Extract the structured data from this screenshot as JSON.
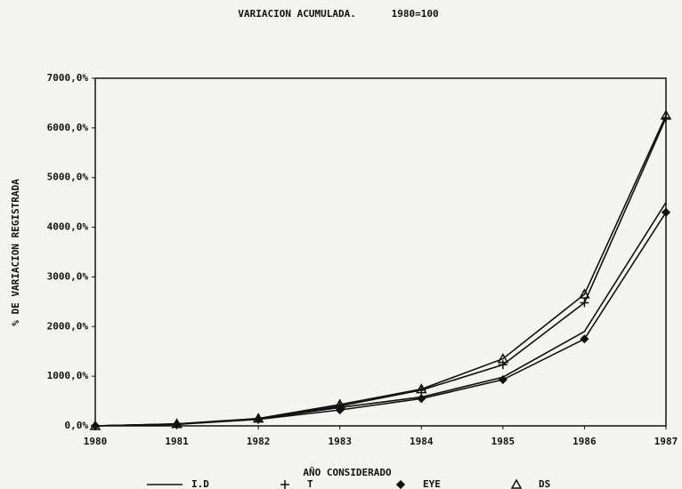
{
  "chart_data": {
    "type": "line",
    "title": "VARIACION ACUMULADA.      1980=100",
    "y_label": "% DE VARIACION REGISTRADA",
    "x_label": "AÑO CONSIDERADO",
    "categories": [
      "1980",
      "1981",
      "1982",
      "1983",
      "1984",
      "1985",
      "1986",
      "1987"
    ],
    "series": [
      {
        "name": "I.D",
        "color": "#111111",
        "marker": "none",
        "values": [
          0,
          40,
          140,
          370,
          580,
          980,
          1900,
          4500
        ]
      },
      {
        "name": "T",
        "color": "#111111",
        "marker": "plus",
        "values": [
          0,
          35,
          140,
          400,
          720,
          1230,
          2480,
          6200
        ]
      },
      {
        "name": "EYE",
        "color": "#111111",
        "marker": "diamond",
        "values": [
          0,
          30,
          130,
          320,
          550,
          930,
          1750,
          4300
        ]
      },
      {
        "name": "DS",
        "color": "#111111",
        "marker": "triangle",
        "values": [
          0,
          40,
          150,
          430,
          740,
          1350,
          2650,
          6250
        ]
      }
    ],
    "ylim": [
      0,
      7000
    ],
    "yticks": [
      {
        "value": 0,
        "label": "0,0%"
      },
      {
        "value": 1000,
        "label": "1000,0%"
      },
      {
        "value": 2000,
        "label": "2000,0%"
      },
      {
        "value": 3000,
        "label": "3000,0%"
      },
      {
        "value": 4000,
        "label": "4000,0%"
      },
      {
        "value": 5000,
        "label": "5000,0%"
      },
      {
        "value": 6000,
        "label": "6000,0%"
      },
      {
        "value": 7000,
        "label": "7000,0%"
      }
    ],
    "grid": false
  }
}
